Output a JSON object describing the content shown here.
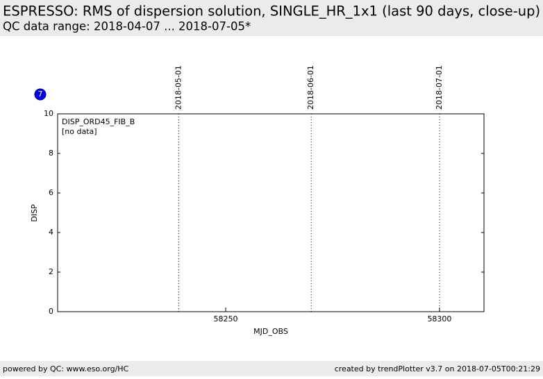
{
  "header": {
    "title": "ESPRESSO: RMS of dispersion solution, SINGLE_HR_1x1 (last 90 days, close-up)",
    "subtitle": "QC data range: 2018-04-07 ... 2018-07-05*"
  },
  "badge": "7",
  "chart_data": {
    "type": "scatter",
    "xlabel": "MJD_OBS",
    "ylabel": "DISP",
    "xlim": [
      58210.7,
      58310.4
    ],
    "ylim": [
      0,
      10
    ],
    "xticks": [
      58250,
      58300
    ],
    "yticks": [
      0,
      2,
      4,
      6,
      8,
      10
    ],
    "date_lines": [
      {
        "value": 58239,
        "label": "2018-05-01"
      },
      {
        "value": 58270,
        "label": "2018-06-01"
      },
      {
        "value": 58300,
        "label": "2018-07-01"
      }
    ],
    "series": [
      {
        "name": "DISP_ORD45_FIB_B",
        "x": [],
        "values": []
      }
    ],
    "annotation": "[no data]"
  },
  "footer": {
    "left": "powered by QC: www.eso.org/HC",
    "right": "created by trendPlotter v3.7 on 2018-07-05T00:21:29"
  }
}
